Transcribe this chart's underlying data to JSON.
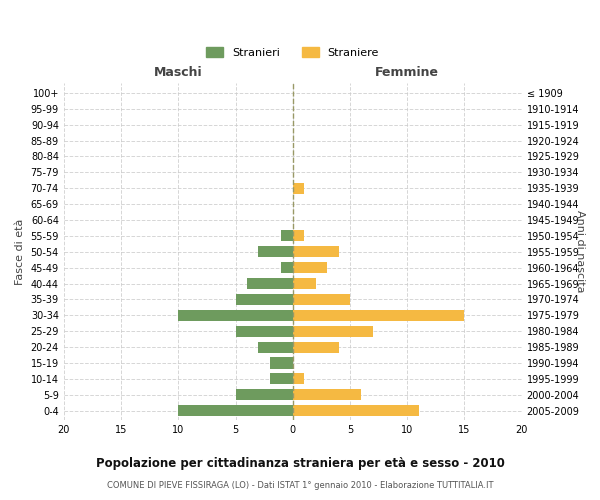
{
  "age_groups": [
    "100+",
    "95-99",
    "90-94",
    "85-89",
    "80-84",
    "75-79",
    "70-74",
    "65-69",
    "60-64",
    "55-59",
    "50-54",
    "45-49",
    "40-44",
    "35-39",
    "30-34",
    "25-29",
    "20-24",
    "15-19",
    "10-14",
    "5-9",
    "0-4"
  ],
  "birth_years": [
    "≤ 1909",
    "1910-1914",
    "1915-1919",
    "1920-1924",
    "1925-1929",
    "1930-1934",
    "1935-1939",
    "1940-1944",
    "1945-1949",
    "1950-1954",
    "1955-1959",
    "1960-1964",
    "1965-1969",
    "1970-1974",
    "1975-1979",
    "1980-1984",
    "1985-1989",
    "1990-1994",
    "1995-1999",
    "2000-2004",
    "2005-2009"
  ],
  "males": [
    0,
    0,
    0,
    0,
    0,
    0,
    0,
    0,
    0,
    1,
    3,
    1,
    4,
    5,
    10,
    5,
    3,
    2,
    2,
    5,
    10
  ],
  "females": [
    0,
    0,
    0,
    0,
    0,
    0,
    1,
    0,
    0,
    1,
    4,
    3,
    2,
    5,
    15,
    7,
    4,
    0,
    1,
    6,
    11
  ],
  "male_color": "#6e9b5e",
  "female_color": "#f5b942",
  "title": "Popolazione per cittadinanza straniera per età e sesso - 2010",
  "subtitle": "COMUNE DI PIEVE FISSIRAGA (LO) - Dati ISTAT 1° gennaio 2010 - Elaborazione TUTTITALIA.IT",
  "legend_male": "Stranieri",
  "legend_female": "Straniere",
  "xlabel_left": "Maschi",
  "xlabel_right": "Femmine",
  "ylabel_left": "Fasce di età",
  "ylabel_right": "Anni di nascita",
  "xlim": 20,
  "background_color": "#ffffff",
  "grid_color": "#cccccc"
}
